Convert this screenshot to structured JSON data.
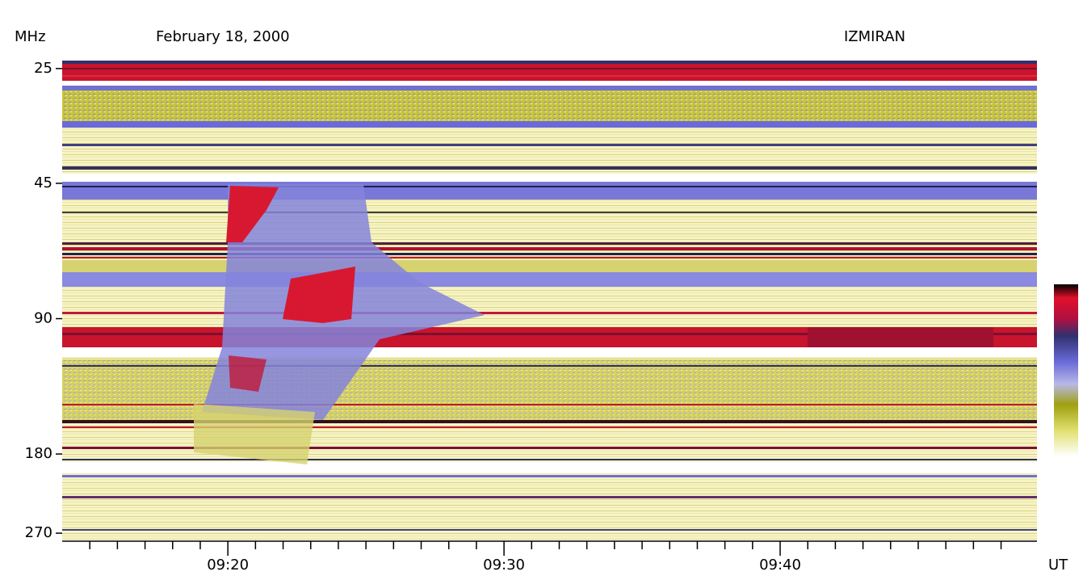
{
  "chart_data": {
    "type": "spectrogram",
    "title": "February 18, 2000",
    "source": "IZMIRAN",
    "y_label": "MHz",
    "x_label": "UT",
    "xlim": [
      14,
      49.3
    ],
    "xticks": [
      {
        "value": 20,
        "label": "09:20"
      },
      {
        "value": 30,
        "label": "09:30"
      },
      {
        "value": 40,
        "label": "09:40"
      }
    ],
    "xminorticks": [
      15,
      16,
      17,
      18,
      19,
      21,
      22,
      23,
      24,
      25,
      26,
      27,
      28,
      29,
      31,
      32,
      33,
      34,
      35,
      36,
      37,
      38,
      39,
      41,
      42,
      43,
      44,
      45,
      46,
      47,
      48
    ],
    "ylim": [
      24,
      279
    ],
    "yscale": "log",
    "yinvert": true,
    "yticks": [
      25,
      45,
      90,
      180,
      270
    ]
  }
}
